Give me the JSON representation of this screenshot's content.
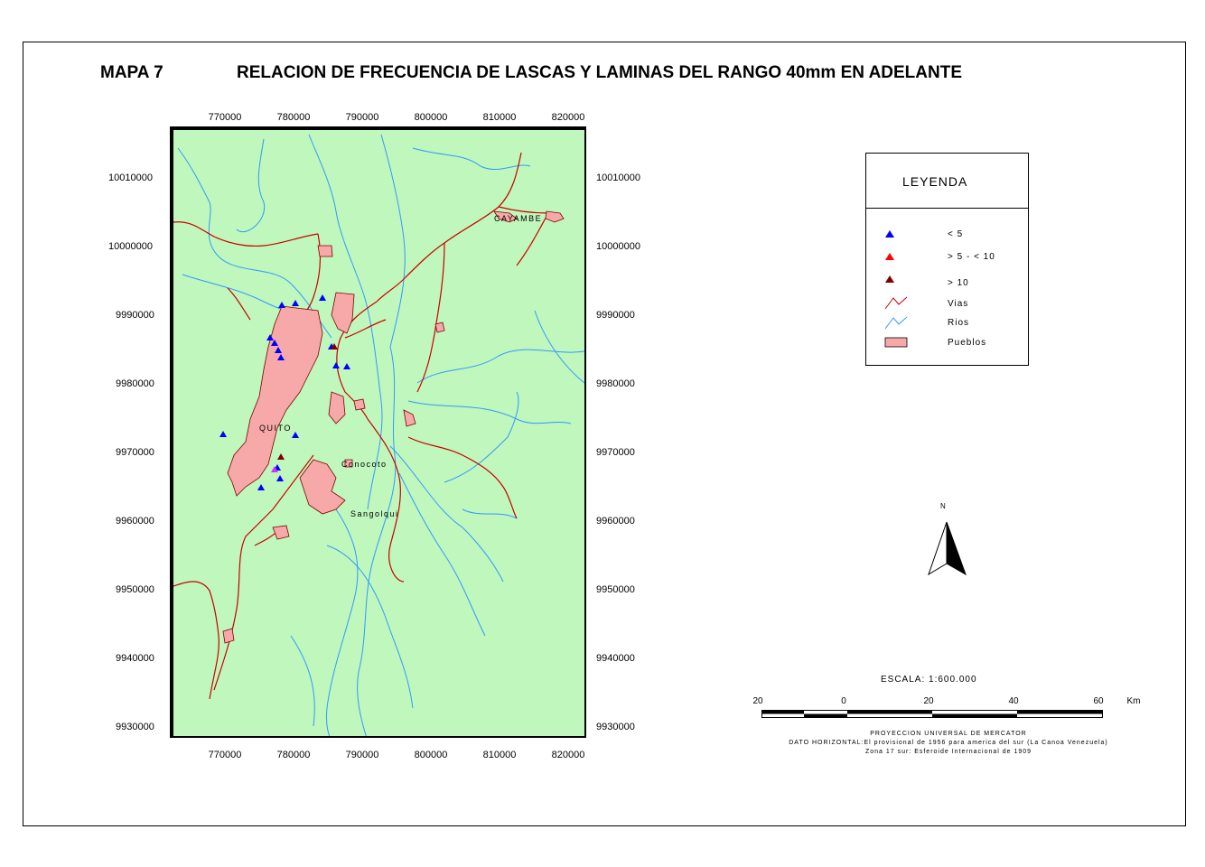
{
  "header": {
    "map_number": "MAPA 7",
    "title": "RELACION DE FRECUENCIA DE LASCAS Y LAMINAS DEL RANGO  40mm  EN ADELANTE"
  },
  "axes": {
    "x_ticks": [
      "770000",
      "780000",
      "790000",
      "800000",
      "810000",
      "820000"
    ],
    "y_ticks": [
      "10010000",
      "10000000",
      "9990000",
      "9980000",
      "9970000",
      "9960000",
      "9950000",
      "9940000",
      "9930000"
    ]
  },
  "places": {
    "cayambe": "CAYAMBE",
    "quito": "QUITO",
    "conocoto": "Conocoto",
    "sangolqui": "Sangolqui"
  },
  "legend": {
    "title": "LEYENDA",
    "items": [
      {
        "label": "< 5",
        "color": "#0000ff"
      },
      {
        "label": "> 5 - < 10",
        "color": "#ff0000"
      },
      {
        "label": "> 10",
        "color": "#800000"
      },
      {
        "label": "Vias",
        "color": "#cc0000"
      },
      {
        "label": "Rios",
        "color": "#3399ff"
      },
      {
        "label": "Pueblos",
        "color": "#f7a9a9"
      }
    ]
  },
  "north": {
    "label": "N"
  },
  "scale": {
    "title": "ESCALA: 1:600.000",
    "labels": [
      "20",
      "0",
      "20",
      "40",
      "60"
    ],
    "unit": "Km"
  },
  "projection": {
    "line1": "PROYECCION UNIVERSAL DE MERCATOR",
    "line2": "DATO HORIZONTAL:El provisional de 1956 para america del sur (La Canoa Venezuela)",
    "line3": "Zona 17 sur: Esferoide Internacional de 1909"
  },
  "colors": {
    "map_bg": "#bff7bd",
    "roads": "#cc0000",
    "rivers": "#3399ff",
    "towns": "#f7a9a9",
    "site_low": "#0000ff",
    "site_high": "#800000",
    "site_mixed": "#cc33ff"
  }
}
